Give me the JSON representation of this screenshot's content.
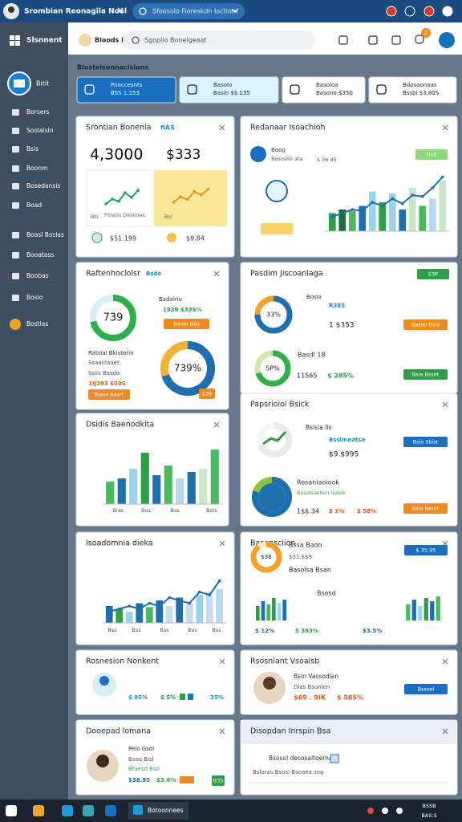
{
  "browser": {
    "tab_title": "Srombian Reonagila Noel",
    "address": "Sfoosolo Fioreskdn loctiom"
  },
  "sidebar": {
    "title": "Slsnnent",
    "profile": "Bitit",
    "items": [
      "Borsers",
      "Soolalsin",
      "Bsis",
      "Boonm",
      "Bosedansis",
      "Boad",
      "Boasl Boslas",
      "Booatass",
      "Boobas",
      "Bosio",
      "Bostias"
    ]
  },
  "header": {
    "brand": "Bloods Dossel",
    "search": "Sgoplio Bonelgeaat",
    "badge": "2"
  },
  "section_title": "Blostelsonnaclsions",
  "tabs": [
    {
      "title": "Pnoccesnts",
      "sub": "BSS 1.153"
    },
    {
      "title": "Basolo",
      "sub": "Basin $$.135"
    },
    {
      "title": "Basoloa",
      "sub": "Basono $350"
    },
    {
      "title": "Bdosaonaas",
      "sub": "Bssbi $3.80S"
    }
  ],
  "cards": [
    {
      "title": "Srontian Bonenia",
      "texts": [
        "fiAS",
        "4,3000",
        "$333",
        "Fitiatis Desiinas",
        "Bsl",
        "$51.199",
        "Bsl",
        "$9.84"
      ],
      "ylim": [
        0,
        100
      ],
      "charts": [
        {
          "type": "line",
          "color": "#1e9e6a",
          "values": [
            20,
            35,
            28,
            55,
            40,
            62
          ]
        },
        {
          "type": "line",
          "color": "#e8921c",
          "values": [
            25,
            42,
            34,
            58,
            48,
            66
          ]
        }
      ]
    },
    {
      "title": "Redanaar Isoachioh",
      "texts": [
        "Boog",
        "Bososllo ata",
        "$ 36 45",
        "Fiab"
      ],
      "ylim": [
        0,
        100
      ],
      "charts": [
        {
          "type": "bar",
          "values": [
            25,
            30,
            28,
            35,
            55,
            40,
            52,
            30,
            60,
            35,
            45,
            70
          ],
          "colors": [
            "#2f9e4a",
            "#1d6d3c",
            "#4bb85f",
            "#1f6fae",
            "#9cd3e8",
            "#2f9e4a",
            "#9cd3e8",
            "#1f6fae",
            "#c8e6c9",
            "#4bb85f",
            "#b8d8f0",
            "#c8e6c9"
          ]
        },
        {
          "type": "line",
          "color": "#1f6fae",
          "values": [
            20,
            25,
            30,
            28,
            40,
            35,
            45,
            38,
            50,
            48,
            60,
            75
          ]
        }
      ]
    },
    {
      "title": "Raftenhoclolsr",
      "texts": [
        "Bsde",
        "739",
        "Badalrio",
        "1939 $33S%",
        "Baosr Biia",
        "Ratsial Bkistorin",
        "Ssaaidaaet",
        "Ssiis Basdo",
        "1IJ393 $50S",
        "Biaso Basrt",
        "739%",
        "$39"
      ],
      "ylim": [
        0,
        100
      ],
      "charts": []
    },
    {
      "title": "Pasdim Jiscoanlaga",
      "texts": [
        "E3P",
        "33%",
        "Bosia",
        "R385",
        "1  $353",
        "Basso Bsia",
        "Basdl 18",
        "5P%",
        "11565",
        "$ 285%",
        "Bsia Bsset"
      ],
      "ylim": [
        0,
        100
      ],
      "charts": []
    },
    {
      "title": "Dsidis Baenodkita",
      "texts": [
        "Biss",
        "Bus",
        "Bss",
        "Bsts"
      ],
      "ylim": [
        0,
        100
      ],
      "charts": [
        {
          "type": "bar",
          "values": [
            35,
            40,
            55,
            80,
            45,
            60,
            40,
            50,
            55,
            85
          ],
          "colors": [
            "#4bb85f",
            "#1f6fae",
            "#9cd3e8",
            "#2f9e4a",
            "#1f6fae",
            "#4bb85f",
            "#b8d8f0",
            "#1f6fae",
            "#c8e6c9",
            "#4bb85f"
          ]
        }
      ]
    },
    {
      "title": "Papsrioiol Bsick",
      "texts": [
        "Bslsia Ils",
        "Bsslmeatsa",
        "$9.$995",
        "Bsio Sbist",
        "Resanlaoiook",
        "Basolsasloin Isaoik",
        "1$$.34",
        "$ 1%",
        "$ 58%",
        "Bsia Bsset"
      ],
      "ylim": [
        0,
        100
      ],
      "charts": []
    },
    {
      "title": "Isoadomnia dieka",
      "texts": [
        "Bss",
        "Bss",
        "Bss",
        "Bss",
        "Bss"
      ],
      "ylim": [
        0,
        100
      ],
      "charts": [
        {
          "type": "bar",
          "values": [
            30,
            25,
            20,
            35,
            28,
            40,
            30,
            45,
            35,
            50,
            55,
            60
          ],
          "colors": [
            "#1f6fae",
            "#2f9e4a",
            "#9cd3e8",
            "#1f6fae",
            "#4bb85f",
            "#1f6fae",
            "#c8dcef",
            "#1f6fae",
            "#c8dcef",
            "#9cd3e8",
            "#c8dcef",
            "#b8d8f0"
          ]
        },
        {
          "type": "line",
          "color": "#1f6fae",
          "values": [
            20,
            25,
            30,
            25,
            35,
            30,
            45,
            40,
            35,
            55,
            50,
            75
          ]
        }
      ]
    },
    {
      "title": "Basonsciion",
      "texts": [
        "$36",
        "Bssa Baon",
        "$31.$$9",
        "Basolsa Bsan",
        "Bsosd",
        "$ 35.95",
        "$ 12%",
        "$ 393%",
        "$3.5%"
      ],
      "ylim": [
        0,
        100
      ],
      "charts": [
        {
          "type": "bar",
          "values": [
            45,
            60,
            50,
            70,
            55,
            65
          ],
          "colors": [
            "#2f9e4a",
            "#1f6fae",
            "#4bb85f",
            "#2f9e4a",
            "#9cd3e8",
            "#1f6fae"
          ]
        },
        {
          "type": "bar",
          "values": [
            50,
            65,
            45,
            70,
            60,
            75
          ],
          "colors": [
            "#4bb85f",
            "#1f6fae",
            "#9cd3e8",
            "#2f9e4a",
            "#1f6fae",
            "#4bb85f"
          ]
        }
      ]
    },
    {
      "title": "Rosnesion Nonkent",
      "texts": [
        "$ 85%",
        "$ 5%",
        "35%"
      ],
      "ylim": [
        0,
        100
      ],
      "charts": []
    },
    {
      "title": "Rsosnlant Vsoalsb",
      "texts": [
        "Bsin Vassodlan",
        "Dlas Bsonlen",
        "$69 . 9IK",
        "$ 585%",
        "Bssoel"
      ],
      "ylim": [
        0,
        100
      ],
      "charts": []
    },
    {
      "title": "Dooepad lomana",
      "texts": [
        "Pelo Gsdi",
        "Basa Bisl",
        "Bfaesd Bso",
        "$38.95",
        "$3.8%",
        "B35"
      ],
      "ylim": [
        0,
        100
      ],
      "charts": []
    },
    {
      "title": "Disopdan Inrspin Bsa",
      "texts": [
        "Bsosol desosaltoerna",
        "Bsloras Bsosl Bsoaea.soo"
      ],
      "ylim": [
        0,
        100
      ],
      "charts": []
    }
  ],
  "taskbar": {
    "app": "Botoonnees",
    "status": "BSSB",
    "time": "BAS:S"
  }
}
